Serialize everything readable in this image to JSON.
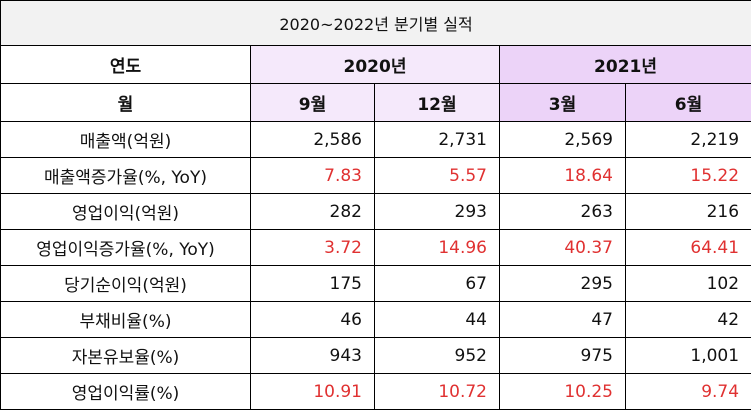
{
  "title": "2020~2022년 분기별 실적",
  "colors": {
    "title_bg": "#f2f2f2",
    "header_2020_bg": "#f5e9fb",
    "header_2021_bg": "#ecd3f8",
    "red_text": "#e03131"
  },
  "header": {
    "year_label": "연도",
    "month_label": "월",
    "years": [
      "2020년",
      "2021년"
    ],
    "months": [
      "9월",
      "12월",
      "3월",
      "6월"
    ]
  },
  "rows": [
    {
      "label": "매출액(억원)",
      "values": [
        "2,586",
        "2,731",
        "2,569",
        "2,219"
      ],
      "red": false
    },
    {
      "label": "매출액증가율(%, YoY)",
      "values": [
        "7.83",
        "5.57",
        "18.64",
        "15.22"
      ],
      "red": true
    },
    {
      "label": "영업이익(억원)",
      "values": [
        "282",
        "293",
        "263",
        "216"
      ],
      "red": false
    },
    {
      "label": "영업이익증가율(%, YoY)",
      "values": [
        "3.72",
        "14.96",
        "40.37",
        "64.41"
      ],
      "red": true
    },
    {
      "label": "당기순이익(억원)",
      "values": [
        "175",
        "67",
        "295",
        "102"
      ],
      "red": false
    },
    {
      "label": "부채비율(%)",
      "values": [
        "46",
        "44",
        "47",
        "42"
      ],
      "red": false
    },
    {
      "label": "자본유보율(%)",
      "values": [
        "943",
        "952",
        "975",
        "1,001"
      ],
      "red": false
    },
    {
      "label": "영업이익률(%)",
      "values": [
        "10.91",
        "10.72",
        "10.25",
        "9.74"
      ],
      "red": true
    }
  ]
}
